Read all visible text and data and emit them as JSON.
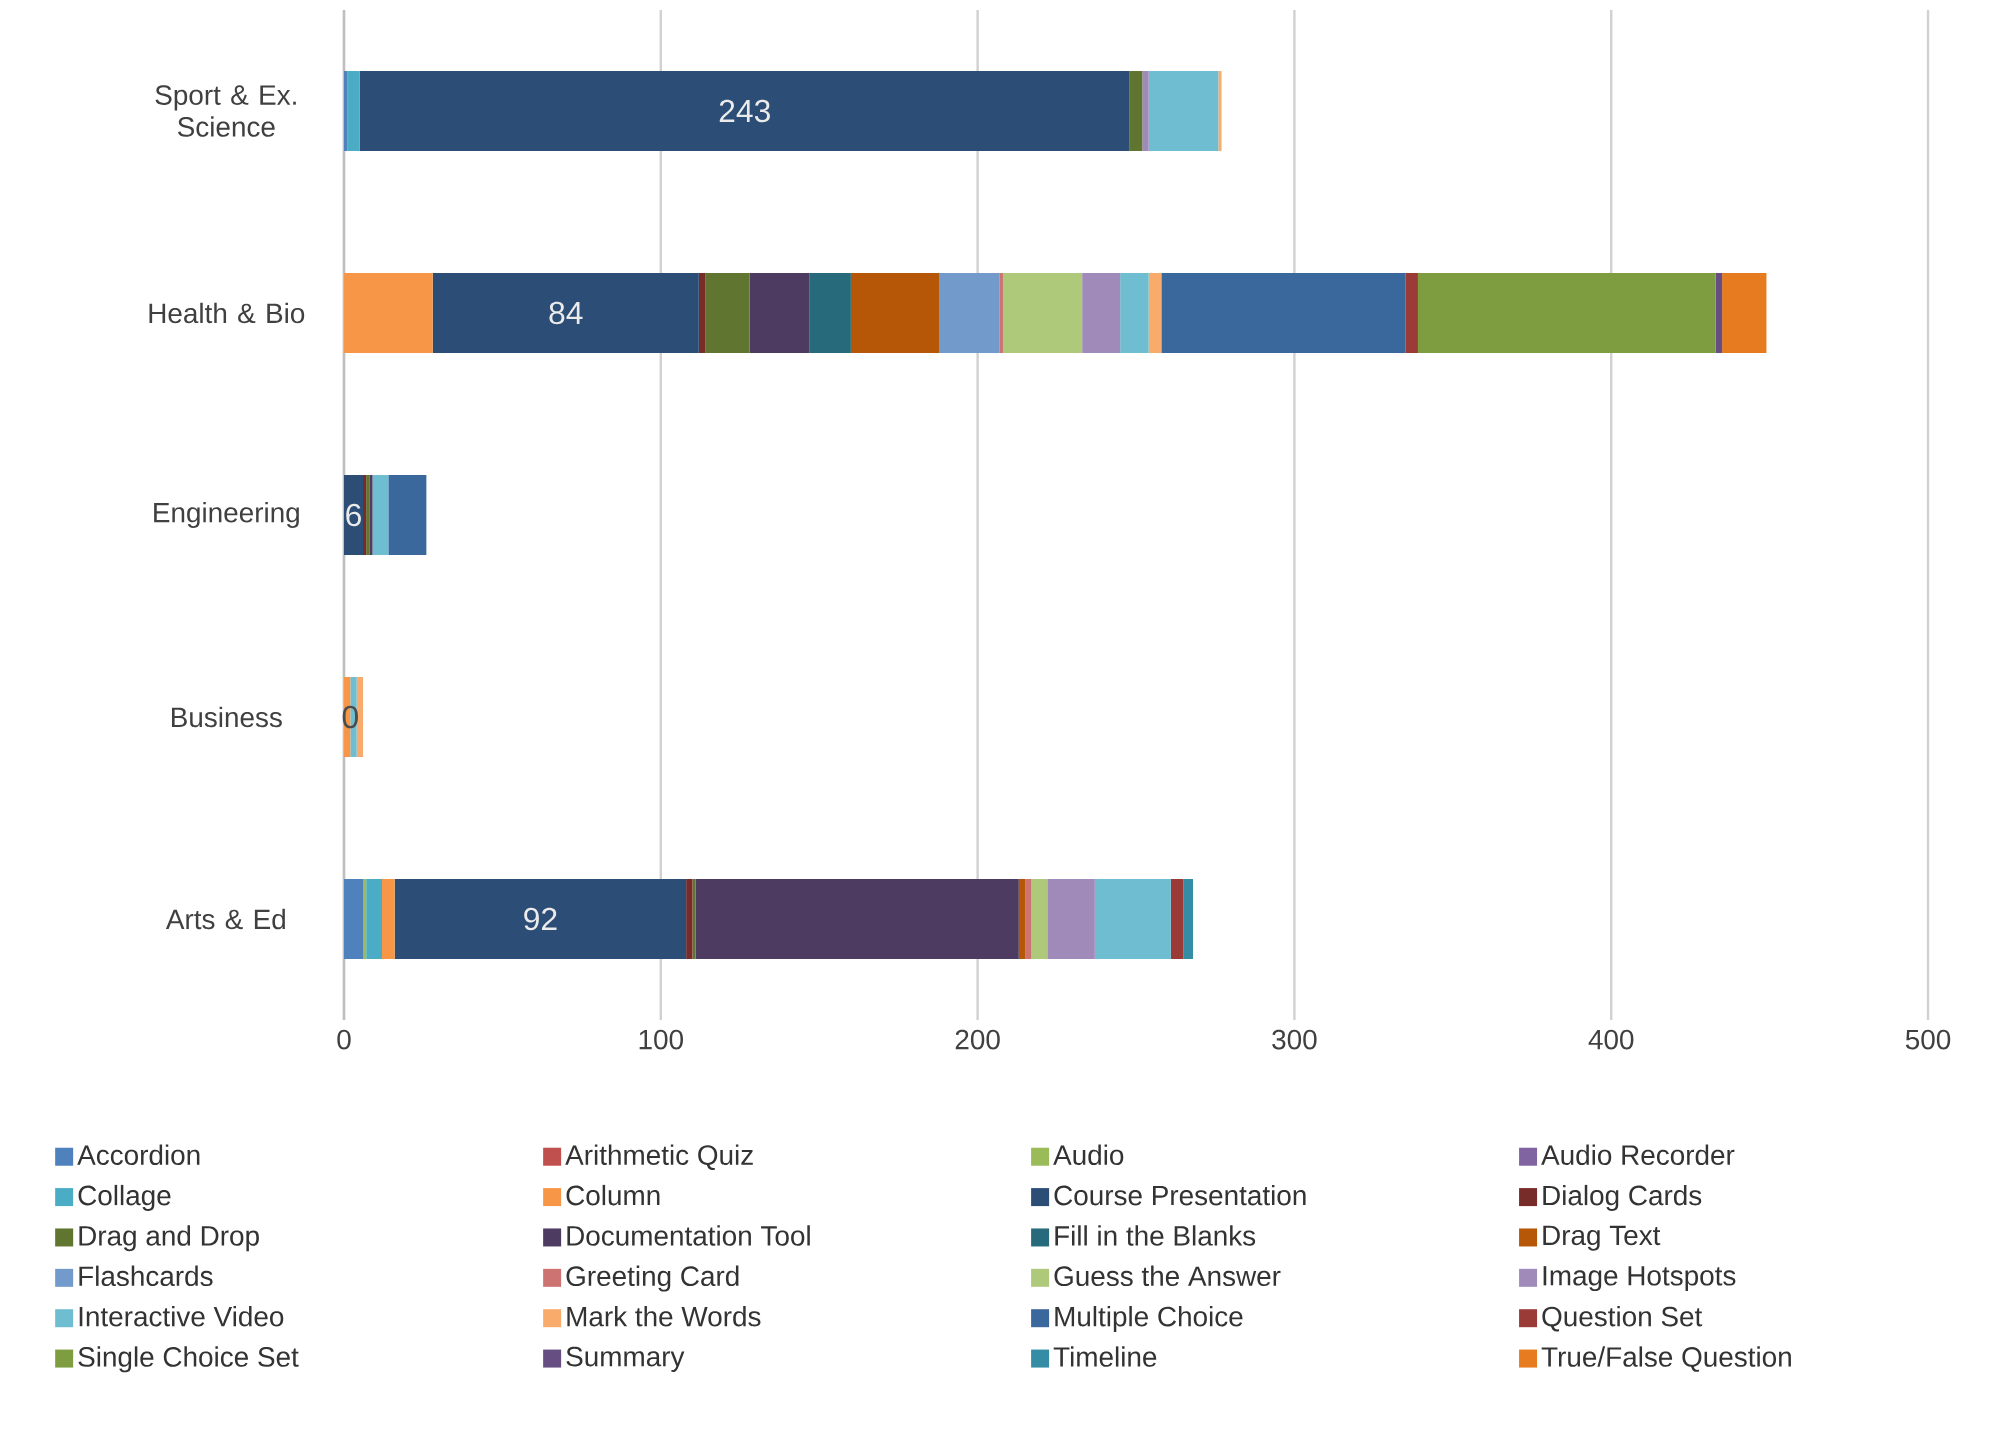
{
  "chart_data": {
    "type": "bar",
    "orientation": "horizontal",
    "stacked": true,
    "grid": "x",
    "legend": "bottom",
    "categories": [
      "Sport & Ex. Science",
      "Health & Bio",
      "Engineering",
      "Business",
      "Arts & Ed"
    ],
    "xlim": [
      0,
      500
    ],
    "xticks": [
      0,
      100,
      200,
      300,
      400,
      500
    ],
    "series": [
      {
        "name": "Accordion",
        "color": "#4f81bd",
        "values": [
          1,
          0,
          0,
          0,
          6
        ]
      },
      {
        "name": "Arithmetic Quiz",
        "color": "#c0504d",
        "values": [
          0,
          0,
          0,
          0,
          0
        ]
      },
      {
        "name": "Audio",
        "color": "#9bbb59",
        "values": [
          0,
          0,
          0,
          0,
          1
        ]
      },
      {
        "name": "Audio Recorder",
        "color": "#8064a2",
        "values": [
          0,
          0,
          0,
          0,
          0
        ]
      },
      {
        "name": "Collage",
        "color": "#4bacc6",
        "values": [
          4,
          0,
          0,
          0,
          5
        ]
      },
      {
        "name": "Column",
        "color": "#f79646",
        "values": [
          0,
          28,
          0,
          2,
          4
        ]
      },
      {
        "name": "Course Presentation",
        "color": "#2c4d75",
        "values": [
          243,
          84,
          6,
          0,
          92
        ],
        "value_labels": [
          "243",
          "84",
          "6",
          "0",
          "92"
        ]
      },
      {
        "name": "Dialog Cards",
        "color": "#772c2a",
        "values": [
          0,
          2,
          1,
          0,
          2
        ]
      },
      {
        "name": "Drag and Drop",
        "color": "#5f7530",
        "values": [
          4,
          14,
          1,
          0,
          1
        ]
      },
      {
        "name": "Documentation Tool",
        "color": "#4d3b62",
        "values": [
          0,
          19,
          1,
          0,
          102
        ]
      },
      {
        "name": "Fill in the Blanks",
        "color": "#276a7c",
        "values": [
          0,
          13,
          0,
          0,
          0
        ]
      },
      {
        "name": "Drag Text",
        "color": "#b65708",
        "values": [
          0,
          28,
          0,
          0,
          2
        ]
      },
      {
        "name": "Flashcards",
        "color": "#729aca",
        "values": [
          0,
          19,
          0,
          0,
          0
        ]
      },
      {
        "name": "Greeting Card",
        "color": "#cd7371",
        "values": [
          0,
          1,
          0,
          0,
          2
        ]
      },
      {
        "name": "Guess the Answer",
        "color": "#afc97a",
        "values": [
          0,
          25,
          0,
          0,
          5
        ]
      },
      {
        "name": "Image Hotspots",
        "color": "#9f8ab9",
        "values": [
          2,
          12,
          0,
          0,
          15
        ]
      },
      {
        "name": "Interactive Video",
        "color": "#6fbdd1",
        "values": [
          22,
          9,
          5,
          2,
          24
        ]
      },
      {
        "name": "Mark the Words",
        "color": "#f9ab6b",
        "values": [
          1,
          4,
          0,
          2,
          0
        ]
      },
      {
        "name": "Multiple Choice",
        "color": "#3a679c",
        "values": [
          0,
          77,
          12,
          0,
          0
        ]
      },
      {
        "name": "Question Set",
        "color": "#9a3b38",
        "values": [
          0,
          4,
          0,
          0,
          4
        ]
      },
      {
        "name": "Single Choice Set",
        "color": "#7e9d40",
        "values": [
          0,
          94,
          0,
          0,
          0
        ]
      },
      {
        "name": "Summary",
        "color": "#664e82",
        "values": [
          0,
          2,
          0,
          0,
          0
        ]
      },
      {
        "name": "Timeline",
        "color": "#358da5",
        "values": [
          0,
          0,
          0,
          0,
          3
        ]
      },
      {
        "name": "True/False Question",
        "color": "#e67b1f",
        "values": [
          0,
          14,
          0,
          0,
          0
        ]
      }
    ]
  }
}
